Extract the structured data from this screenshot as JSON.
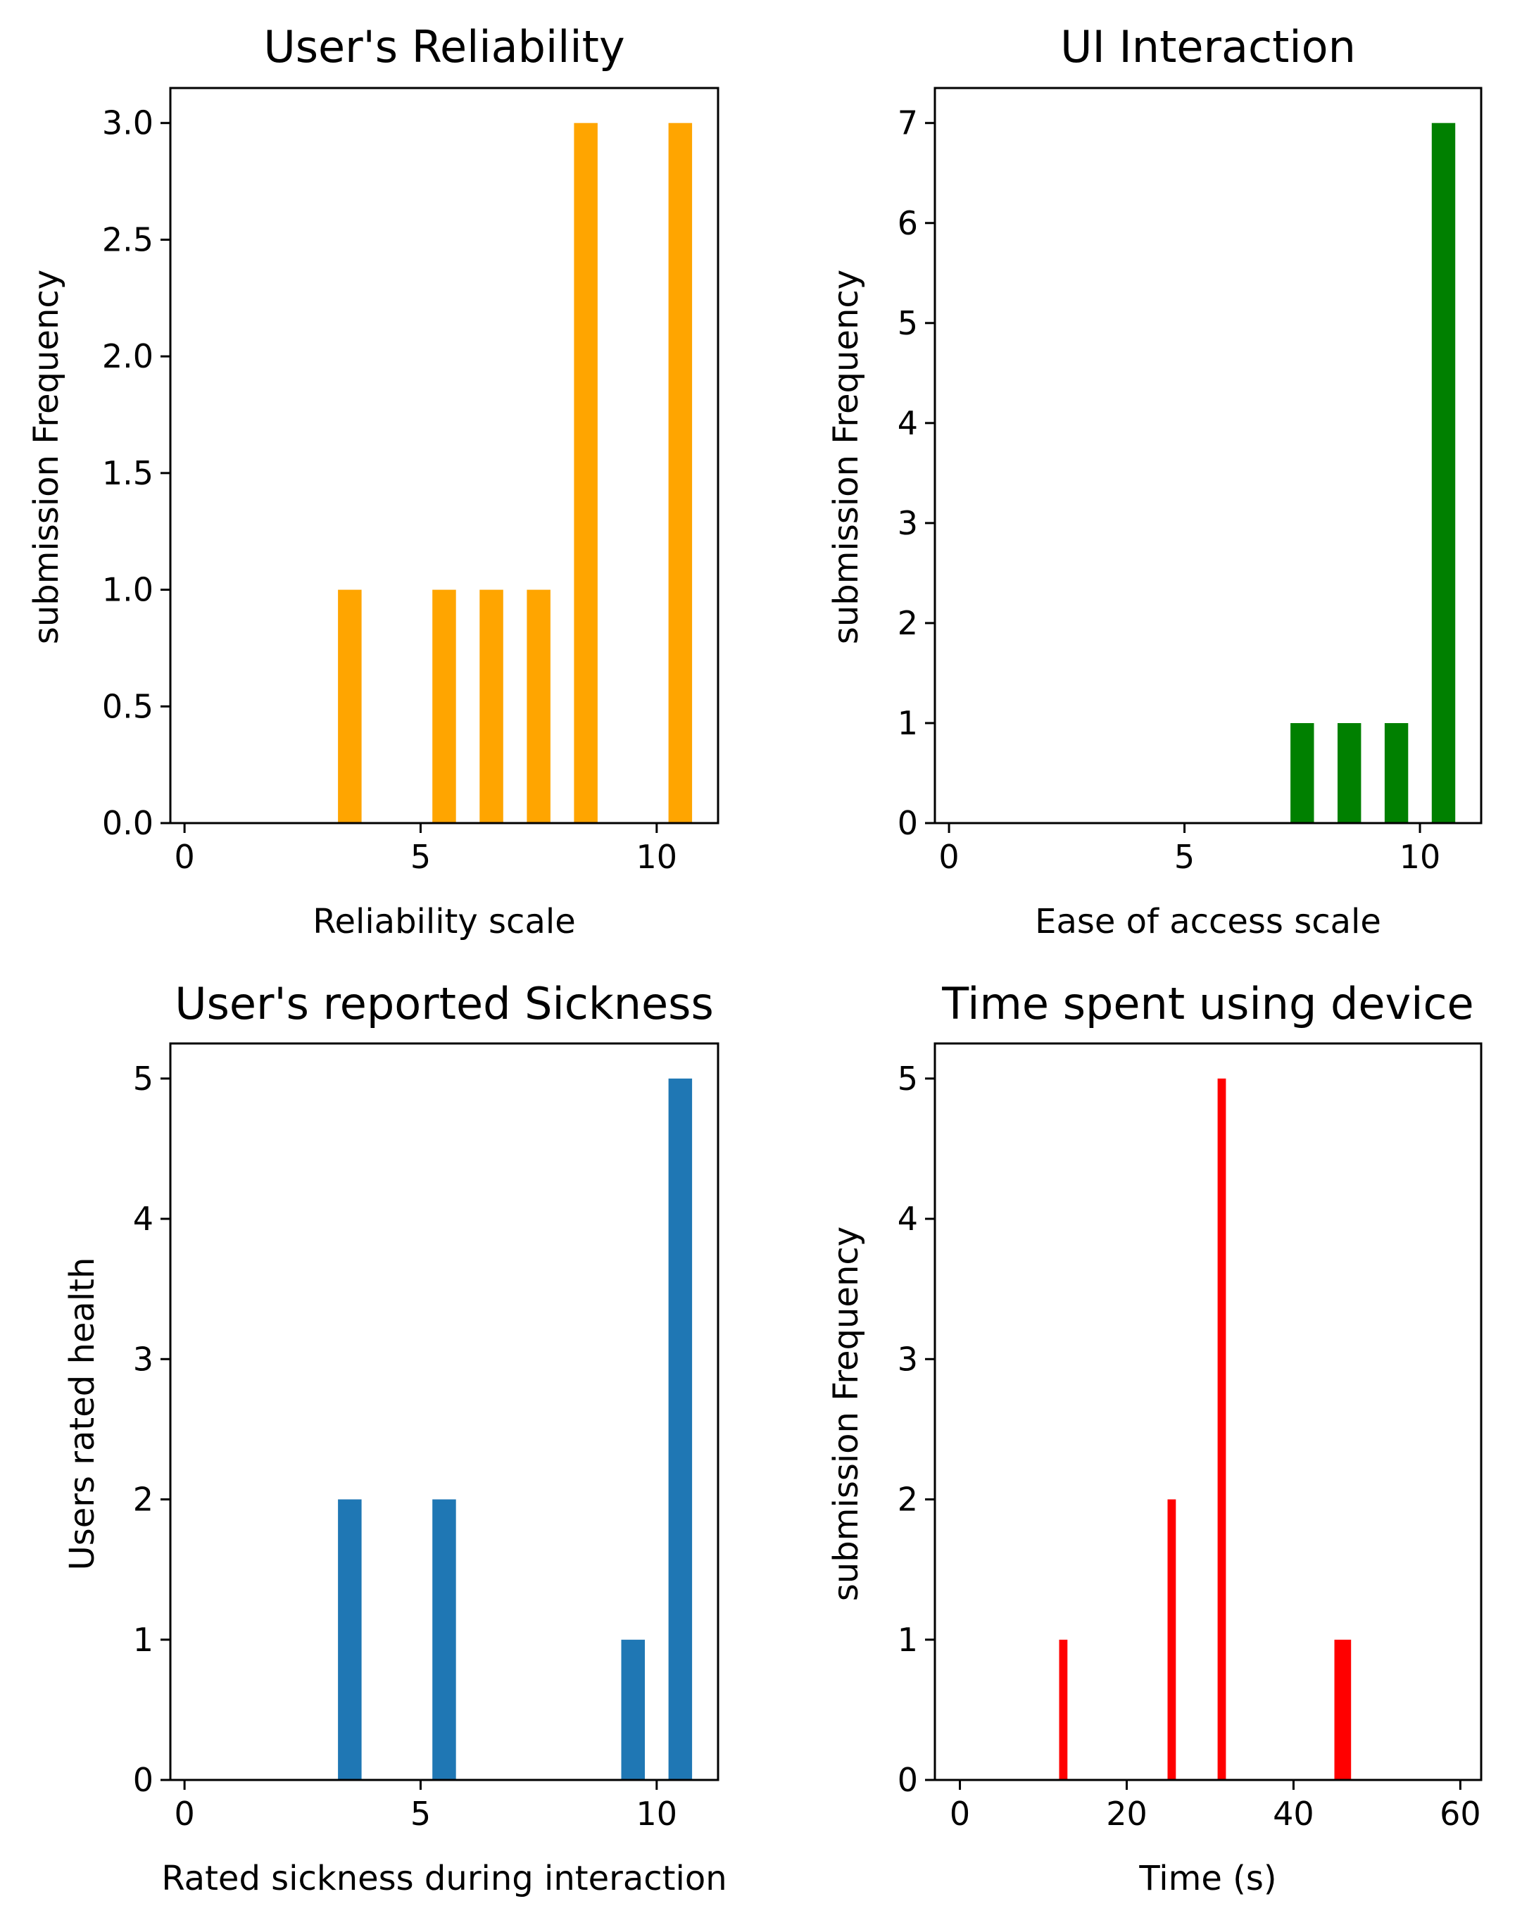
{
  "chart_data": [
    {
      "type": "bar",
      "title": "User's Reliability",
      "xlabel": "Reliability scale",
      "ylabel": "submission Frequency",
      "color": "#ffa500",
      "xlim": [
        -0.3,
        11.3
      ],
      "ylim": [
        0,
        3.15
      ],
      "xticks": [
        0,
        5,
        10
      ],
      "xtick_labels": [
        "0",
        "5",
        "10"
      ],
      "yticks": [
        0,
        0.5,
        1,
        1.5,
        2,
        2.5,
        3
      ],
      "ytick_labels": [
        "0.0",
        "0.5",
        "1.0",
        "1.5",
        "2.0",
        "2.5",
        "3.0"
      ],
      "bar_width": 0.5,
      "x": [
        3.5,
        5.5,
        6.5,
        7.5,
        8.5,
        10.5
      ],
      "values": [
        1,
        1,
        1,
        1,
        3,
        3
      ]
    },
    {
      "type": "bar",
      "title": "UI Interaction",
      "xlabel": "Ease of access scale",
      "ylabel": "submission Frequency",
      "color": "#008000",
      "xlim": [
        -0.3,
        11.3
      ],
      "ylim": [
        0,
        7.35
      ],
      "xticks": [
        0,
        5,
        10
      ],
      "xtick_labels": [
        "0",
        "5",
        "10"
      ],
      "yticks": [
        0,
        1,
        2,
        3,
        4,
        5,
        6,
        7
      ],
      "ytick_labels": [
        "0",
        "1",
        "2",
        "3",
        "4",
        "5",
        "6",
        "7"
      ],
      "bar_width": 0.5,
      "x": [
        7.5,
        8.5,
        9.5,
        10.5
      ],
      "values": [
        1,
        1,
        1,
        7
      ]
    },
    {
      "type": "bar",
      "title": "User's reported Sickness",
      "xlabel": "Rated sickness during interaction",
      "ylabel": "Users rated health",
      "color": "#1f77b4",
      "xlim": [
        -0.3,
        11.3
      ],
      "ylim": [
        0,
        5.25
      ],
      "xticks": [
        0,
        5,
        10
      ],
      "xtick_labels": [
        "0",
        "5",
        "10"
      ],
      "yticks": [
        0,
        1,
        2,
        3,
        4,
        5
      ],
      "ytick_labels": [
        "0",
        "1",
        "2",
        "3",
        "4",
        "5"
      ],
      "bar_width": 0.5,
      "x": [
        3.5,
        5.5,
        9.5,
        10.5
      ],
      "values": [
        2,
        2,
        1,
        5
      ]
    },
    {
      "type": "bar",
      "title": "Time spent using device",
      "xlabel": "Time (s)",
      "ylabel": "submission Frequency",
      "color": "#ff0000",
      "xlim": [
        -3,
        62.5
      ],
      "ylim": [
        0,
        5.25
      ],
      "xticks": [
        0,
        20,
        40,
        60
      ],
      "xtick_labels": [
        "0",
        "20",
        "40",
        "60"
      ],
      "yticks": [
        0,
        1,
        2,
        3,
        4,
        5
      ],
      "ytick_labels": [
        "0",
        "1",
        "2",
        "3",
        "4",
        "5"
      ],
      "bars": [
        {
          "x0": 11.9,
          "x1": 12.9,
          "value": 1
        },
        {
          "x0": 24.9,
          "x1": 25.9,
          "value": 2
        },
        {
          "x0": 30.9,
          "x1": 31.9,
          "value": 5
        },
        {
          "x0": 44.9,
          "x1": 46.9,
          "value": 1
        }
      ]
    }
  ]
}
